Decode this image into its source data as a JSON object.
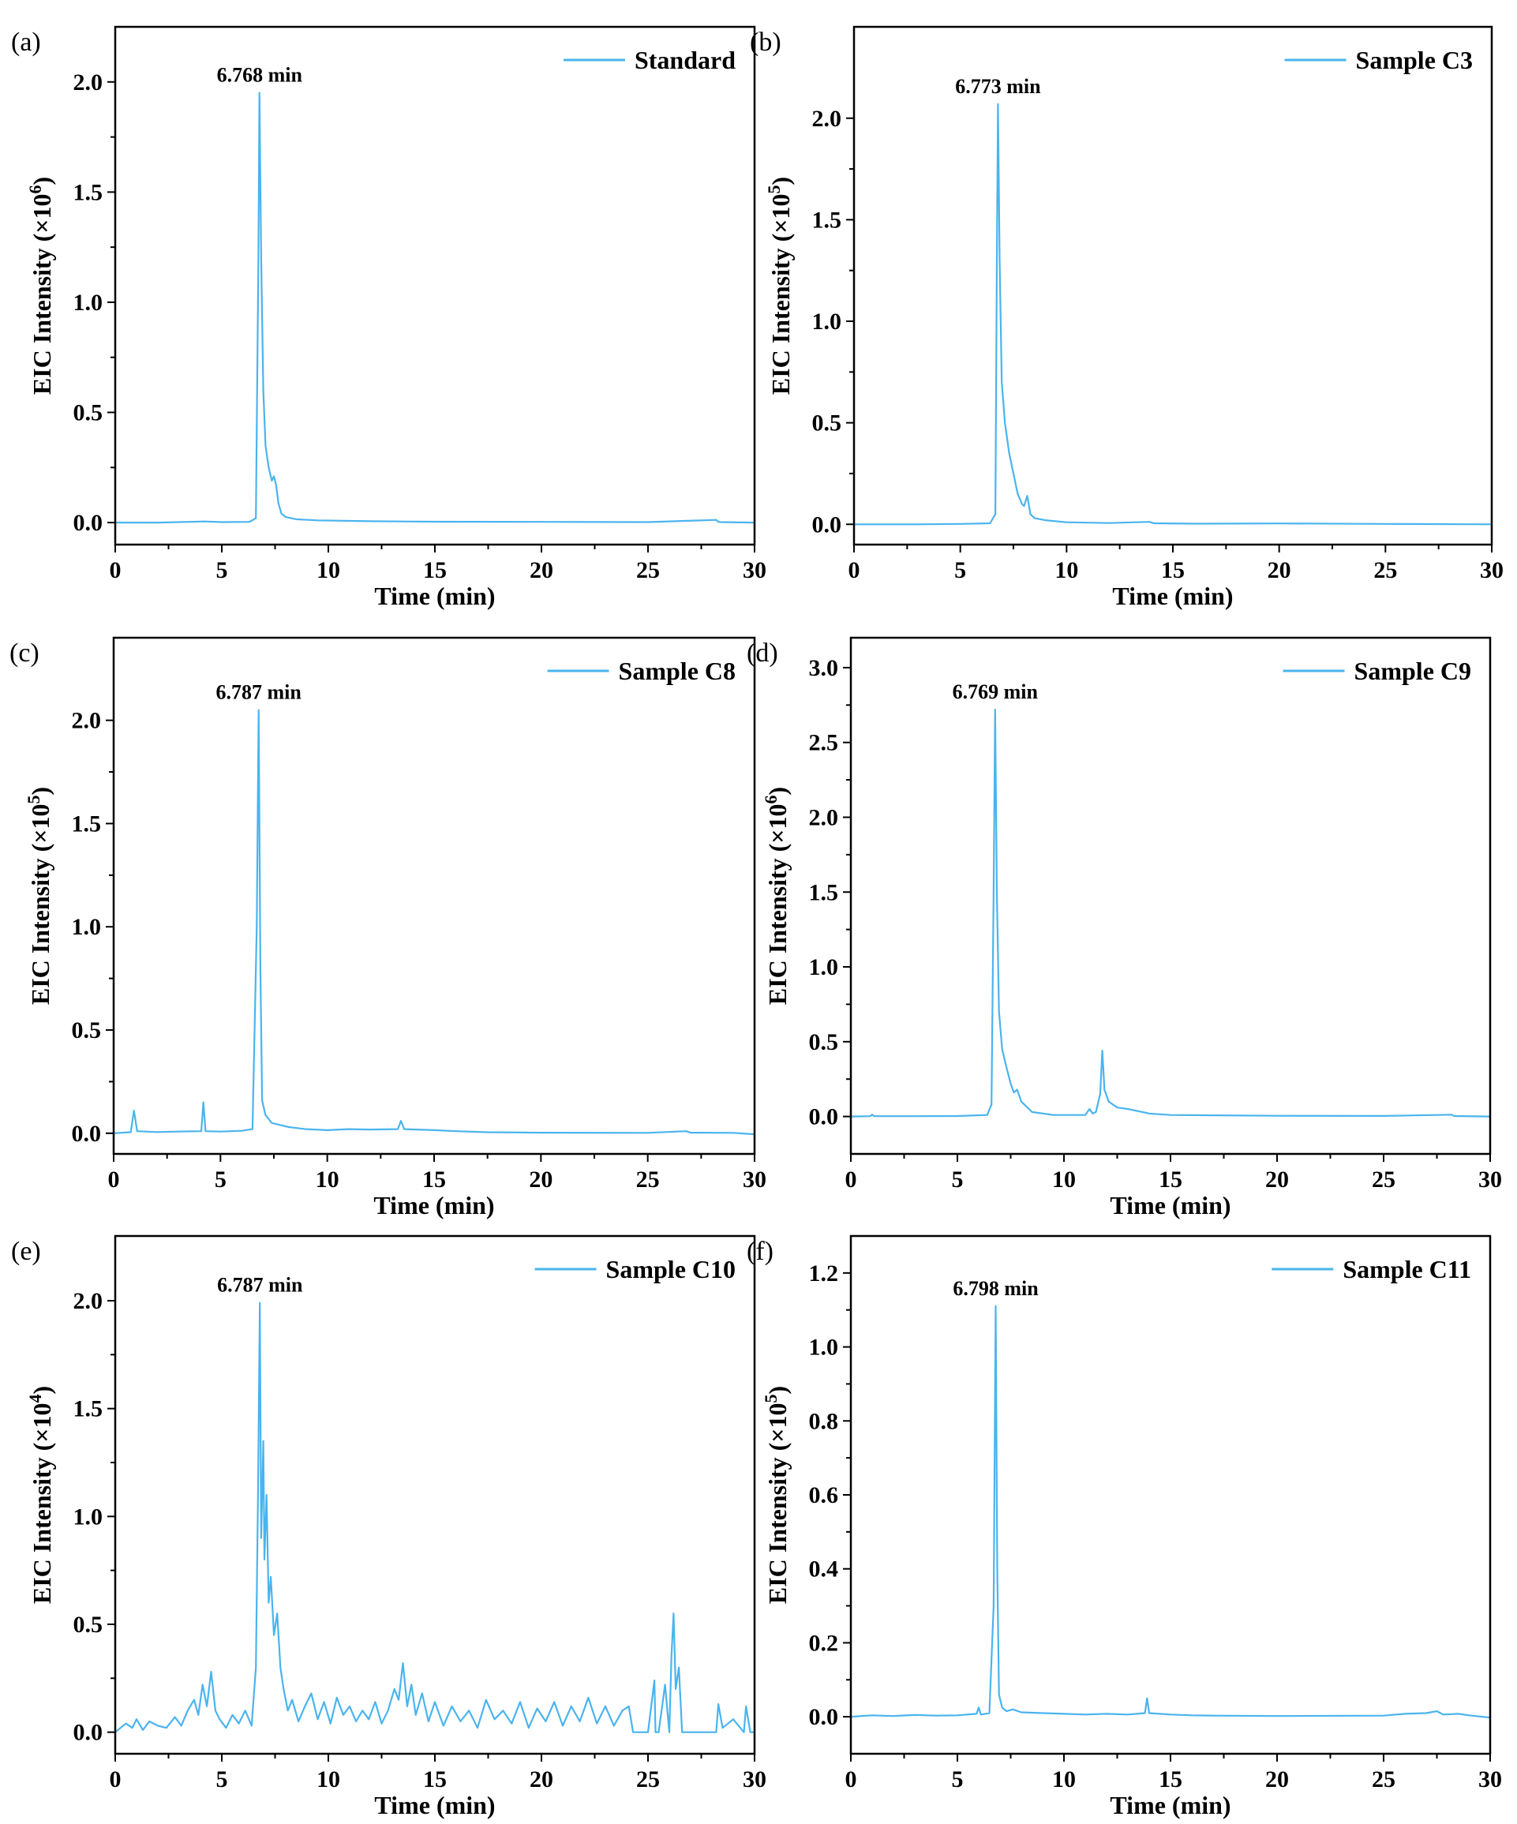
{
  "line_color": "#4ab4ee",
  "chart_data": [
    {
      "panel": "(a)",
      "type": "line",
      "xlabel": "Time (min)",
      "ylabel": "EIC Intensity (×10",
      "ylabel_exp": "6",
      "ylabel_close": ")",
      "legend": "Standard",
      "legend_position": "top-right",
      "peak_label": "6.768 min",
      "peak_time": 6.768,
      "peak_value": 1.95,
      "xlim": [
        0,
        30
      ],
      "ylim": [
        -0.1,
        2.25
      ],
      "xticks": [
        0,
        5,
        10,
        15,
        20,
        25,
        30
      ],
      "yticks": [
        0.0,
        0.5,
        1.0,
        1.5,
        2.0
      ],
      "xtick_labels": [
        "0",
        "5",
        "10",
        "15",
        "20",
        "25",
        "30"
      ],
      "ytick_labels": [
        "0.0",
        "0.5",
        "1.0",
        "1.5",
        "2.0"
      ],
      "series": [
        {
          "name": "Standard",
          "x": [
            0,
            2,
            4.2,
            5,
            6.3,
            6.6,
            6.72,
            6.768,
            6.85,
            6.95,
            7.05,
            7.2,
            7.35,
            7.45,
            7.55,
            7.65,
            7.8,
            8.0,
            8.5,
            9.5,
            12,
            15,
            20,
            25,
            28.2,
            28.3,
            28.4,
            30
          ],
          "y": [
            0.0,
            0.0,
            0.005,
            0.002,
            0.003,
            0.02,
            1.2,
            1.95,
            1.2,
            0.6,
            0.35,
            0.25,
            0.19,
            0.21,
            0.17,
            0.09,
            0.04,
            0.025,
            0.015,
            0.01,
            0.006,
            0.004,
            0.003,
            0.002,
            0.012,
            0.003,
            0.002,
            0.0
          ]
        }
      ]
    },
    {
      "panel": "(b)",
      "type": "line",
      "xlabel": "Time (min)",
      "ylabel": "EIC Intensity (×10",
      "ylabel_exp": "5",
      "ylabel_close": ")",
      "legend": "Sample C3",
      "legend_position": "top-right",
      "peak_label": "6.773 min",
      "peak_time": 6.773,
      "peak_value": 2.07,
      "xlim": [
        0,
        30
      ],
      "ylim": [
        -0.1,
        2.45
      ],
      "xticks": [
        0,
        5,
        10,
        15,
        20,
        25,
        30
      ],
      "yticks": [
        0.0,
        0.5,
        1.0,
        1.5,
        2.0
      ],
      "xtick_labels": [
        "0",
        "5",
        "10",
        "15",
        "20",
        "25",
        "30"
      ],
      "ytick_labels": [
        "0.0",
        "0.5",
        "1.0",
        "1.5",
        "2.0"
      ],
      "series": [
        {
          "name": "Sample C3",
          "x": [
            0,
            3,
            5,
            6.4,
            6.65,
            6.72,
            6.773,
            6.85,
            6.95,
            7.1,
            7.3,
            7.5,
            7.7,
            7.9,
            8.0,
            8.15,
            8.3,
            8.5,
            9.0,
            10,
            12,
            13.9,
            14.1,
            16,
            20,
            25,
            30
          ],
          "y": [
            0.0,
            0.0,
            0.002,
            0.005,
            0.05,
            1.3,
            2.07,
            1.3,
            0.7,
            0.5,
            0.35,
            0.25,
            0.15,
            0.1,
            0.09,
            0.14,
            0.05,
            0.03,
            0.02,
            0.01,
            0.006,
            0.012,
            0.005,
            0.003,
            0.004,
            0.002,
            0.0
          ]
        }
      ]
    },
    {
      "panel": "(c)",
      "type": "line",
      "xlabel": "Time (min)",
      "ylabel": "EIC Intensity (×10",
      "ylabel_exp": "5",
      "ylabel_close": ")",
      "legend": "Sample C8",
      "legend_position": "top-right",
      "peak_label": "6.787 min",
      "peak_time": 6.787,
      "peak_value": 2.05,
      "xlim": [
        0,
        30
      ],
      "ylim": [
        -0.1,
        2.4
      ],
      "xticks": [
        0,
        5,
        10,
        15,
        20,
        25,
        30
      ],
      "yticks": [
        0.0,
        0.5,
        1.0,
        1.5,
        2.0
      ],
      "xtick_labels": [
        "0",
        "5",
        "10",
        "15",
        "20",
        "25",
        "30"
      ],
      "ytick_labels": [
        "0.0",
        "0.5",
        "1.0",
        "1.5",
        "2.0"
      ],
      "series": [
        {
          "name": "Sample C8",
          "x": [
            0,
            0.8,
            0.95,
            1.1,
            2,
            3,
            4.1,
            4.2,
            4.3,
            5,
            6.0,
            6.5,
            6.7,
            6.787,
            6.87,
            6.95,
            7.1,
            7.4,
            7.8,
            8.2,
            9,
            10,
            11,
            12,
            13.3,
            13.45,
            13.6,
            15,
            16,
            17.5,
            20,
            25,
            26.8,
            27,
            29,
            30
          ],
          "y": [
            0.0,
            0.005,
            0.11,
            0.01,
            0.006,
            0.008,
            0.01,
            0.15,
            0.01,
            0.008,
            0.012,
            0.02,
            1.0,
            2.05,
            0.8,
            0.16,
            0.09,
            0.05,
            0.04,
            0.03,
            0.02,
            0.015,
            0.02,
            0.018,
            0.02,
            0.06,
            0.02,
            0.015,
            0.01,
            0.005,
            0.003,
            0.002,
            0.01,
            0.003,
            0.002,
            -0.005
          ]
        }
      ]
    },
    {
      "panel": "(d)",
      "type": "line",
      "xlabel": "Time (min)",
      "ylabel": "EIC Intensity (×10",
      "ylabel_exp": "6",
      "ylabel_close": ")",
      "legend": "Sample C9",
      "legend_position": "top-right",
      "peak_label": "6.769 min",
      "peak_time": 6.769,
      "peak_value": 2.72,
      "xlim": [
        0,
        30
      ],
      "ylim": [
        -0.25,
        3.2
      ],
      "xticks": [
        0,
        5,
        10,
        15,
        20,
        25,
        30
      ],
      "yticks": [
        0.0,
        0.5,
        1.0,
        1.5,
        2.0,
        2.5,
        3.0
      ],
      "xtick_labels": [
        "0",
        "5",
        "10",
        "15",
        "20",
        "25",
        "30"
      ],
      "ytick_labels": [
        "0.0",
        "0.5",
        "1.0",
        "1.5",
        "2.0",
        "2.5",
        "3.0"
      ],
      "series": [
        {
          "name": "Sample C9",
          "x": [
            0,
            0.9,
            1.0,
            1.1,
            3,
            5,
            6.4,
            6.6,
            6.7,
            6.769,
            6.85,
            6.95,
            7.1,
            7.3,
            7.5,
            7.65,
            7.8,
            8.0,
            8.5,
            9.5,
            11,
            11.2,
            11.35,
            11.5,
            11.7,
            11.8,
            11.9,
            12.1,
            12.5,
            13.0,
            14,
            15,
            20,
            25,
            28.2,
            28.3,
            30
          ],
          "y": [
            0.0,
            0.002,
            0.012,
            0.002,
            0.002,
            0.003,
            0.01,
            0.08,
            1.5,
            2.72,
            1.5,
            0.7,
            0.45,
            0.33,
            0.22,
            0.16,
            0.18,
            0.1,
            0.03,
            0.01,
            0.01,
            0.05,
            0.02,
            0.03,
            0.15,
            0.44,
            0.18,
            0.1,
            0.06,
            0.05,
            0.02,
            0.01,
            0.005,
            0.004,
            0.012,
            0.003,
            0.0
          ]
        }
      ]
    },
    {
      "panel": "(e)",
      "type": "line",
      "xlabel": "Time (min)",
      "ylabel": "EIC Intensity (×10",
      "ylabel_exp": "4",
      "ylabel_close": ")",
      "legend": "Sample C10",
      "legend_position": "top-right",
      "peak_label": "6.787 min",
      "peak_time": 6.787,
      "peak_value": 1.99,
      "xlim": [
        0,
        30
      ],
      "ylim": [
        -0.1,
        2.3
      ],
      "xticks": [
        0,
        5,
        10,
        15,
        20,
        25,
        30
      ],
      "yticks": [
        0.0,
        0.5,
        1.0,
        1.5,
        2.0
      ],
      "xtick_labels": [
        "0",
        "5",
        "10",
        "15",
        "20",
        "25",
        "30"
      ],
      "ytick_labels": [
        "0.0",
        "0.5",
        "1.0",
        "1.5",
        "2.0"
      ],
      "series": [
        {
          "name": "Sample C10",
          "x": [
            0,
            0.5,
            0.8,
            1.0,
            1.3,
            1.6,
            2.0,
            2.4,
            2.8,
            3.1,
            3.4,
            3.7,
            3.9,
            4.1,
            4.3,
            4.5,
            4.7,
            4.9,
            5.2,
            5.5,
            5.8,
            6.1,
            6.4,
            6.6,
            6.7,
            6.787,
            6.85,
            6.95,
            7.0,
            7.1,
            7.2,
            7.3,
            7.45,
            7.6,
            7.75,
            7.9,
            8.1,
            8.3,
            8.6,
            8.9,
            9.2,
            9.5,
            9.8,
            10.1,
            10.4,
            10.7,
            11.0,
            11.3,
            11.6,
            11.9,
            12.2,
            12.5,
            12.8,
            13.1,
            13.3,
            13.5,
            13.7,
            13.9,
            14.1,
            14.4,
            14.7,
            15.0,
            15.4,
            15.8,
            16.2,
            16.6,
            17.0,
            17.4,
            17.8,
            18.2,
            18.6,
            19.0,
            19.4,
            19.8,
            20.2,
            20.6,
            21.0,
            21.4,
            21.8,
            22.2,
            22.6,
            23.0,
            23.4,
            23.8,
            24.1,
            24.3,
            25.0,
            25.3,
            25.35,
            25.5,
            25.8,
            26.0,
            26.1,
            26.2,
            26.3,
            26.45,
            26.6,
            27.5,
            28.2,
            28.3,
            28.5,
            29.0,
            29.5,
            29.6,
            29.8,
            30
          ],
          "y": [
            0.0,
            0.04,
            0.02,
            0.06,
            0.01,
            0.05,
            0.03,
            0.02,
            0.07,
            0.03,
            0.1,
            0.15,
            0.08,
            0.22,
            0.12,
            0.28,
            0.1,
            0.06,
            0.02,
            0.08,
            0.04,
            0.1,
            0.03,
            0.3,
            1.1,
            1.99,
            0.9,
            1.35,
            0.8,
            1.1,
            0.6,
            0.72,
            0.45,
            0.55,
            0.3,
            0.2,
            0.1,
            0.15,
            0.05,
            0.12,
            0.18,
            0.06,
            0.14,
            0.04,
            0.16,
            0.08,
            0.12,
            0.05,
            0.1,
            0.06,
            0.14,
            0.04,
            0.1,
            0.2,
            0.15,
            0.32,
            0.12,
            0.22,
            0.08,
            0.18,
            0.05,
            0.14,
            0.03,
            0.12,
            0.05,
            0.1,
            0.02,
            0.15,
            0.06,
            0.1,
            0.04,
            0.14,
            0.02,
            0.11,
            0.05,
            0.14,
            0.03,
            0.12,
            0.05,
            0.16,
            0.04,
            0.12,
            0.03,
            0.1,
            0.12,
            0.0,
            0.0,
            0.24,
            0.0,
            0.0,
            0.22,
            0.0,
            0.35,
            0.55,
            0.2,
            0.3,
            0.0,
            0.0,
            0.0,
            0.13,
            0.02,
            0.06,
            0.0,
            0.12,
            0.0,
            0.0
          ]
        }
      ]
    },
    {
      "panel": "(f)",
      "type": "line",
      "xlabel": "Time (min)",
      "ylabel": "EIC Intensity (×10",
      "ylabel_exp": "5",
      "ylabel_close": ")",
      "legend": "Sample C11",
      "legend_position": "top-right",
      "peak_label": "6.798 min",
      "peak_time": 6.798,
      "peak_value": 1.11,
      "xlim": [
        0,
        30
      ],
      "ylim": [
        -0.1,
        1.3
      ],
      "xticks": [
        0,
        5,
        10,
        15,
        20,
        25,
        30
      ],
      "yticks": [
        0.0,
        0.2,
        0.4,
        0.6,
        0.8,
        1.0,
        1.2
      ],
      "xtick_labels": [
        "0",
        "5",
        "10",
        "15",
        "20",
        "25",
        "30"
      ],
      "ytick_labels": [
        "0.0",
        "0.2",
        "0.4",
        "0.6",
        "0.8",
        "1.0",
        "1.2"
      ],
      "series": [
        {
          "name": "Sample C11",
          "x": [
            0,
            1,
            2,
            3,
            4,
            5,
            5.9,
            6.0,
            6.1,
            6.5,
            6.7,
            6.798,
            6.87,
            6.95,
            7.1,
            7.3,
            7.6,
            8,
            9,
            10,
            11,
            12,
            13,
            13.8,
            13.9,
            14.0,
            15,
            16,
            17,
            20,
            25,
            26,
            27,
            27.5,
            27.8,
            28.5,
            29,
            30
          ],
          "y": [
            0.0,
            0.004,
            0.002,
            0.005,
            0.003,
            0.004,
            0.008,
            0.025,
            0.006,
            0.01,
            0.3,
            1.11,
            0.4,
            0.06,
            0.025,
            0.015,
            0.02,
            0.012,
            0.01,
            0.008,
            0.006,
            0.008,
            0.006,
            0.01,
            0.05,
            0.01,
            0.006,
            0.004,
            0.003,
            0.002,
            0.003,
            0.008,
            0.01,
            0.015,
            0.006,
            0.008,
            0.004,
            -0.002
          ]
        }
      ]
    }
  ]
}
